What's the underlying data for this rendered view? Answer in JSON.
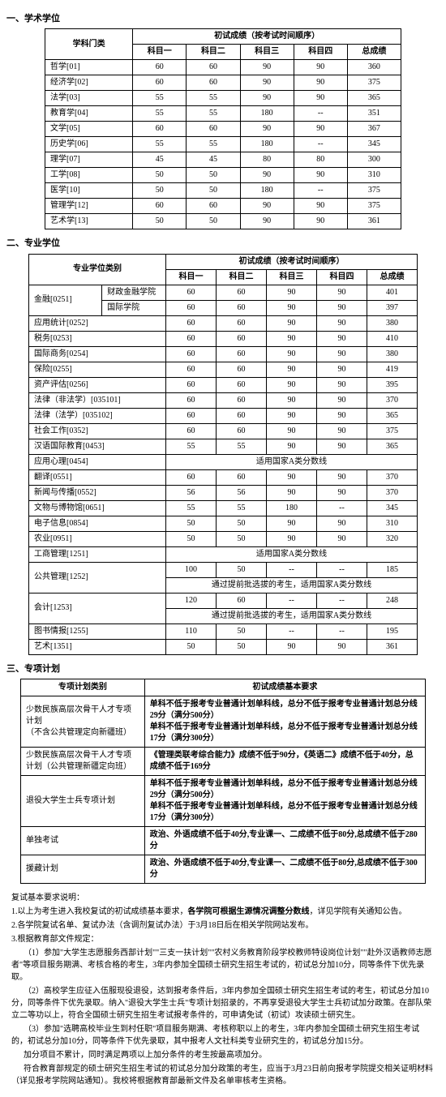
{
  "sections": {
    "s1": "一、学术学位",
    "s2": "二、专业学位",
    "s3": "三、专项计划"
  },
  "headers": {
    "discipline": "学科门类",
    "prof_cat": "专业学位类别",
    "plan_cat": "专项计划类别",
    "exam_header": "初试成绩（按考试时间顺序）",
    "req_header": "初试成绩基本要求",
    "k1": "科目一",
    "k2": "科目二",
    "k3": "科目三",
    "k4": "科目四",
    "total": "总成绩"
  },
  "t1_rows": [
    {
      "cat": "哲学[01]",
      "k1": "60",
      "k2": "60",
      "k3": "90",
      "k4": "90",
      "t": "360"
    },
    {
      "cat": "经济学[02]",
      "k1": "60",
      "k2": "60",
      "k3": "90",
      "k4": "90",
      "t": "375"
    },
    {
      "cat": "法学[03]",
      "k1": "55",
      "k2": "55",
      "k3": "90",
      "k4": "90",
      "t": "365"
    },
    {
      "cat": "教育学[04]",
      "k1": "55",
      "k2": "55",
      "k3": "180",
      "k4": "--",
      "t": "351"
    },
    {
      "cat": "文学[05]",
      "k1": "60",
      "k2": "60",
      "k3": "90",
      "k4": "90",
      "t": "367"
    },
    {
      "cat": "历史学[06]",
      "k1": "55",
      "k2": "55",
      "k3": "180",
      "k4": "--",
      "t": "345"
    },
    {
      "cat": "理学[07]",
      "k1": "45",
      "k2": "45",
      "k3": "80",
      "k4": "80",
      "t": "300"
    },
    {
      "cat": "工学[08]",
      "k1": "50",
      "k2": "50",
      "k3": "90",
      "k4": "90",
      "t": "310"
    },
    {
      "cat": "医学[10]",
      "k1": "50",
      "k2": "50",
      "k3": "180",
      "k4": "--",
      "t": "375"
    },
    {
      "cat": "管理学[12]",
      "k1": "60",
      "k2": "60",
      "k3": "90",
      "k4": "90",
      "t": "375"
    },
    {
      "cat": "艺术学[13]",
      "k1": "50",
      "k2": "50",
      "k3": "90",
      "k4": "90",
      "t": "361"
    }
  ],
  "t2": {
    "jr_label": "金融[0251]",
    "jr_sub1": "财政金融学院",
    "jr_row1": {
      "k1": "60",
      "k2": "60",
      "k3": "90",
      "k4": "90",
      "t": "401"
    },
    "jr_sub2": "国际学院",
    "jr_row2": {
      "k1": "60",
      "k2": "60",
      "k3": "90",
      "k4": "90",
      "t": "397"
    },
    "rows_full": [
      {
        "cat": "应用统计[0252]",
        "k1": "60",
        "k2": "60",
        "k3": "90",
        "k4": "90",
        "t": "380"
      },
      {
        "cat": "税务[0253]",
        "k1": "60",
        "k2": "60",
        "k3": "90",
        "k4": "90",
        "t": "410"
      },
      {
        "cat": "国际商务[0254]",
        "k1": "60",
        "k2": "60",
        "k3": "90",
        "k4": "90",
        "t": "380"
      },
      {
        "cat": "保险[0255]",
        "k1": "60",
        "k2": "60",
        "k3": "90",
        "k4": "90",
        "t": "419"
      },
      {
        "cat": "资产评估[0256]",
        "k1": "60",
        "k2": "60",
        "k3": "90",
        "k4": "90",
        "t": "395"
      },
      {
        "cat": "法律（非法学）[035101]",
        "k1": "60",
        "k2": "60",
        "k3": "90",
        "k4": "90",
        "t": "370"
      },
      {
        "cat": "法律（法学）[035102]",
        "k1": "60",
        "k2": "60",
        "k3": "90",
        "k4": "90",
        "t": "365"
      },
      {
        "cat": "社会工作[0352]",
        "k1": "60",
        "k2": "60",
        "k3": "90",
        "k4": "90",
        "t": "375"
      },
      {
        "cat": "汉语国际教育[0453]",
        "k1": "55",
        "k2": "55",
        "k3": "90",
        "k4": "90",
        "t": "365"
      }
    ],
    "yyxl": {
      "cat": "应用心理[0454]",
      "note": "适用国家A类分数线"
    },
    "rows_full2": [
      {
        "cat": "翻译[0551]",
        "k1": "60",
        "k2": "60",
        "k3": "90",
        "k4": "90",
        "t": "370"
      },
      {
        "cat": "新闻与传播[0552]",
        "k1": "56",
        "k2": "56",
        "k3": "90",
        "k4": "90",
        "t": "370"
      },
      {
        "cat": "文物与博物馆[0651]",
        "k1": "55",
        "k2": "55",
        "k3": "180",
        "k4": "--",
        "t": "345"
      },
      {
        "cat": "电子信息[0854]",
        "k1": "50",
        "k2": "50",
        "k3": "90",
        "k4": "90",
        "t": "310"
      },
      {
        "cat": "农业[0951]",
        "k1": "50",
        "k2": "50",
        "k3": "90",
        "k4": "90",
        "t": "320"
      }
    ],
    "gsgl": {
      "cat": "工商管理[1251]",
      "note": "适用国家A类分数线"
    },
    "gggl": {
      "cat": "公共管理[1252]",
      "r1": {
        "k1": "100",
        "k2": "50",
        "k3": "--",
        "k4": "--",
        "t": "185"
      },
      "note": "通过提前批选拔的考生，适用国家A类分数线"
    },
    "kj": {
      "cat": "会计[1253]",
      "r1": {
        "k1": "120",
        "k2": "60",
        "k3": "--",
        "k4": "--",
        "t": "248"
      },
      "note": "通过提前批选拔的考生，适用国家A类分数线"
    },
    "tsqb": {
      "cat": "图书情报[1255]",
      "k1": "110",
      "k2": "50",
      "k3": "--",
      "k4": "--",
      "t": "195"
    },
    "ys": {
      "cat": "艺术[1351]",
      "k1": "50",
      "k2": "50",
      "k3": "90",
      "k4": "90",
      "t": "361"
    }
  },
  "t3_rows": [
    {
      "cat": "少数民族高层次骨干人才专项计划\n（不含公共管理定向新疆班）",
      "req": "单科不低于报考专业普通计划单科线，总分不低于报考专业普通计划总分线29分（满分500分）\n单科不低于报考专业普通计划单科线，总分不低于报考专业普通计划总分线17分（满分300分）"
    },
    {
      "cat": "少数民族高层次骨干人才专项计划（公共管理新疆定向班）",
      "req": "《管理类联考综合能力》成绩不低于90分，《英语二》成绩不低于40分，总成绩不低于169分"
    },
    {
      "cat": "退役大学生士兵专项计划",
      "req": "单科不低于报考专业普通计划单科线，总分不低于报考专业普通计划总分线29分（满分500分）\n单科不低于报考专业普通计划单科线，总分不低于报考专业普通计划总分线17分（满分300分）"
    },
    {
      "cat": "单独考试",
      "req": "政治、外语成绩不低于40分,专业课一、二成绩不低于80分,总成绩不低于280分"
    },
    {
      "cat": "援藏计划",
      "req": "政治、外语成绩不低于40分,专业课一、二成绩不低于80分,总成绩不低于300分"
    }
  ],
  "notes": {
    "title": "复试基本要求说明：",
    "n1": "1.以上为考生进入我校复试的初试成绩基本要求，",
    "n1b": "各学院可根据生源情况调整分数线",
    "n1c": "，详见学院有关通知公告。",
    "n2": "2.各学院复试名单、复试办法（含调剂复试办法）于3月18日后在相关学院网站发布。",
    "n3": "3.根据教育部文件规定：",
    "p1": "（1）参加\"大学生志愿服务西部计划\"\"三支一扶计划\"\"农村义务教育阶段学校教师特设岗位计划\"\"赴外汉语教师志愿者\"等项目服务期满、考核合格的考生，3年内参加全国硕士研究生招生考试的，初试总分加10分，同等条件下优先录取。",
    "p2": "（2）高校学生应征入伍服现役退役，达到报考条件后，3年内参加全国硕士研究生招生考试的考生，初试总分加10分，同等条件下优先录取。纳入\"退役大学生士兵\"专项计划招录的，不再享受退役大学生士兵初试加分政策。在部队荣立二等功以上，符合全国硕士研究生招生考试报考条件的，可申请免试（初试）攻读硕士研究生。",
    "p3": "（3）参加\"选聘高校毕业生到村任职\"项目服务期满、考核称职以上的考生，3年内参加全国硕士研究生招生考试的，初试总分加10分，同等条件下优先录取，其中报考人文社科类专业研究生的，初试总分加15分。",
    "p4": "加分项目不累计，同时满足两项以上加分条件的考生按最高项加分。",
    "p5": "符合教育部规定的硕士研究生招生考试的初试总分加分政策的考生，应当于3月23日前向报考学院提交相关证明材料（详见报考学院网站通知）。我校将根据教育部最新文件及名单审核考生资格。"
  }
}
